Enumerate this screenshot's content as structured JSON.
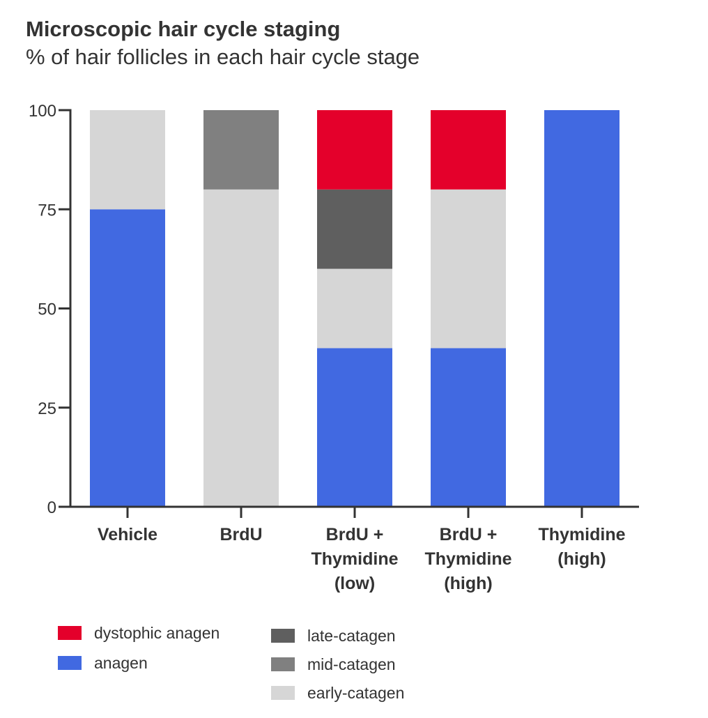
{
  "chart_data": {
    "type": "bar",
    "stacked": true,
    "title": "Microscopic hair cycle staging",
    "subtitle": "% of hair follicles in each hair cycle stage",
    "xlabel": "",
    "ylabel": "",
    "ylim": [
      0,
      100
    ],
    "yticks": [
      "0",
      "25",
      "50",
      "75",
      "100"
    ],
    "categories": [
      [
        "Vehicle"
      ],
      [
        "BrdU"
      ],
      [
        "BrdU +",
        "Thymidine",
        "(low)"
      ],
      [
        "BrdU +",
        "Thymidine",
        "(high)"
      ],
      [
        "Thymidine",
        "(high)"
      ]
    ],
    "series": [
      {
        "name": "anagen",
        "color": "#4169E1",
        "values": [
          75,
          0,
          40,
          40,
          100
        ]
      },
      {
        "name": "early-catagen",
        "color": "#D6D6D6",
        "values": [
          25,
          80,
          20,
          40,
          0
        ]
      },
      {
        "name": "mid-catagen",
        "color": "#808080",
        "values": [
          0,
          20,
          0,
          0,
          0
        ]
      },
      {
        "name": "late-catagen",
        "color": "#5F5F5F",
        "values": [
          0,
          0,
          20,
          0,
          0
        ]
      },
      {
        "name": "dystophic anagen",
        "color": "#E4002B",
        "values": [
          0,
          0,
          20,
          20,
          0
        ]
      }
    ],
    "legend_left": [
      "dystophic anagen",
      "anagen"
    ],
    "legend_right": [
      "late-catagen",
      "mid-catagen",
      "early-catagen"
    ],
    "legend_position": "bottom",
    "grid": false
  }
}
